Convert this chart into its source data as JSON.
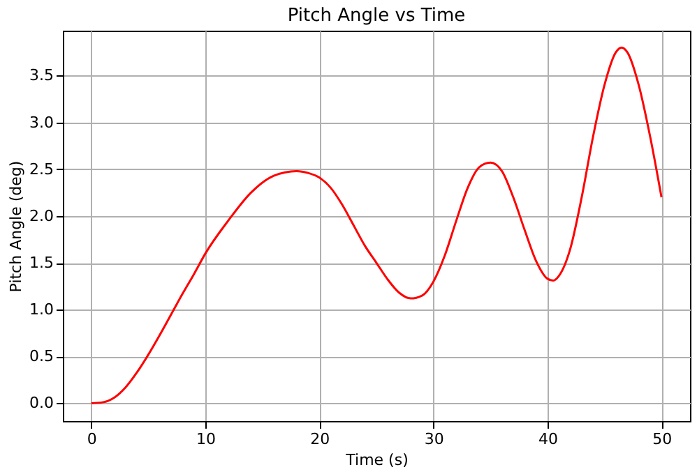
{
  "chart_data": {
    "type": "line",
    "title": "Pitch Angle vs Time",
    "xlabel": "Time (s)",
    "ylabel": "Pitch Angle (deg)",
    "x": [
      0,
      1,
      2,
      3,
      4,
      5,
      6,
      7,
      8,
      9,
      10,
      12,
      14,
      16,
      18,
      19,
      20,
      21,
      22,
      23,
      24,
      25,
      26,
      27,
      28,
      29,
      30,
      31,
      32,
      33,
      34,
      35,
      36,
      37,
      38,
      39,
      40,
      40.5,
      41,
      42,
      43,
      44,
      45,
      46,
      46.5,
      47,
      48,
      49,
      50
    ],
    "series": [
      {
        "color": "#ff0000",
        "values": [
          0,
          0.01,
          0.06,
          0.17,
          0.33,
          0.52,
          0.73,
          0.95,
          1.17,
          1.38,
          1.6,
          1.95,
          2.25,
          2.43,
          2.48,
          2.46,
          2.41,
          2.3,
          2.12,
          1.9,
          1.68,
          1.5,
          1.32,
          1.18,
          1.12,
          1.15,
          1.3,
          1.58,
          1.95,
          2.3,
          2.52,
          2.57,
          2.48,
          2.2,
          1.85,
          1.52,
          1.33,
          1.31,
          1.36,
          1.65,
          2.2,
          2.85,
          3.4,
          3.75,
          3.8,
          3.75,
          3.4,
          2.85,
          2.2
        ]
      }
    ],
    "xlim": [
      -2.5,
      52.5
    ],
    "xticks": [
      0,
      10,
      20,
      30,
      40,
      50
    ],
    "ylim": [
      -0.19,
      3.98
    ],
    "yticks": [
      {
        "value": 0,
        "label": "0.0"
      },
      {
        "value": 0.5,
        "label": "0.5"
      },
      {
        "value": 1,
        "label": "1.0"
      },
      {
        "value": 1.5,
        "label": "1.5"
      },
      {
        "value": 2,
        "label": "2.0"
      },
      {
        "value": 2.5,
        "label": "2.5"
      },
      {
        "value": 3,
        "label": "3.0"
      },
      {
        "value": 3.5,
        "label": "3.5"
      }
    ],
    "grid": true,
    "line_style": "solid",
    "marker": "none"
  }
}
